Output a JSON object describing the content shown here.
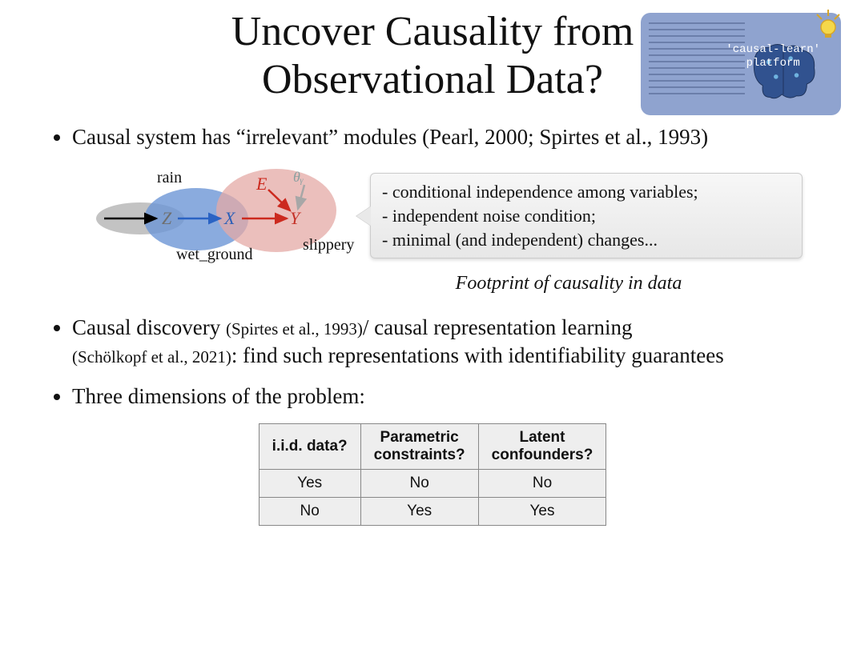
{
  "title_line1": "Uncover Causality from",
  "title_line2": "Observational Data?",
  "logo": {
    "label_line1": "'causal-learn'",
    "label_line2": "platform",
    "bg_color": "#8fa3cf",
    "brain_color": "#31528f",
    "bulb_color": "#f5d84a"
  },
  "bullet1_pre": "Causal system has “irrelevant” modules ",
  "bullet1_ref": "(Pearl, 2000; Spirtes et al., 1993)",
  "diagram": {
    "rain": "rain",
    "wet_ground": "wet_ground",
    "slippery": "slippery",
    "Z": "Z",
    "X": "X",
    "Y": "Y",
    "E": "E",
    "theta": "θᵧ",
    "ellipse_gray": "#b9b9b9",
    "ellipse_blue": "#6d96d6",
    "ellipse_red": "#e4aaa5",
    "arrow_black": "#000000",
    "arrow_blue": "#2a63c4",
    "arrow_red": "#cc2a1f",
    "arrow_gray": "#a7a7a7",
    "node_gray": "#6f6f6f",
    "node_blue": "#2a5fb8",
    "node_red": "#c43127",
    "theta_color": "#8aa0a0"
  },
  "callout": {
    "line1": "- conditional independence among variables;",
    "line2": "- independent noise condition;",
    "line3": "- minimal (and independent) changes..."
  },
  "footprint": "Footprint of causality in data",
  "bullet2_a": "Causal discovery ",
  "bullet2_ref1": "(Spirtes et al., 1993)",
  "bullet2_b": "/ causal representation learning ",
  "bullet2_ref2": "(Schölkopf et al., 2021)",
  "bullet2_c": ": find such representations with identifiability guarantees",
  "bullet3": "Three dimensions of the problem:",
  "table": {
    "headers": [
      "i.i.d. data?",
      "Parametric\nconstraints?",
      "Latent\nconfounders?"
    ],
    "rows": [
      [
        "Yes",
        "No",
        "No"
      ],
      [
        "No",
        "Yes",
        "Yes"
      ]
    ]
  }
}
